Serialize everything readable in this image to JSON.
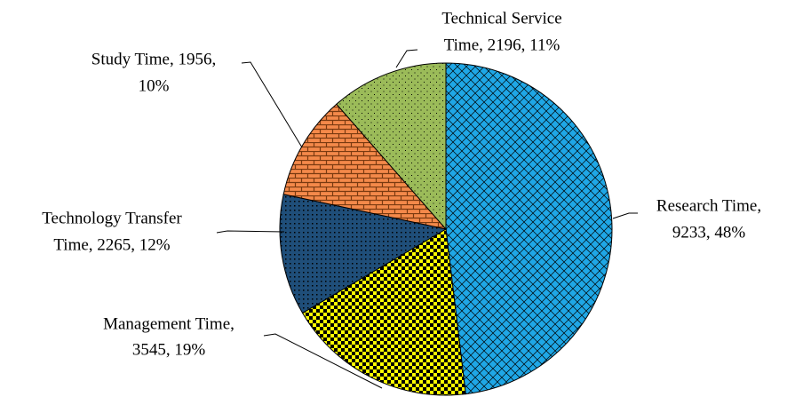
{
  "chart_data": {
    "type": "pie",
    "values": [
      9233,
      3545,
      2265,
      1956,
      2196
    ],
    "value_labels": [
      [
        "Research Time,",
        "9233, 48%"
      ],
      [
        "Management Time,",
        "3545, 19%"
      ],
      [
        "Technology Transfer",
        "Time, 2265, 12%"
      ],
      [
        "Study Time, 1956,",
        "10%"
      ],
      [
        "Technical Service",
        "Time, 2196, 11%"
      ]
    ],
    "colors": [
      "#1fa7e6",
      "#ffff00",
      "#1f4e79",
      "#f4894a",
      "#9bbb59"
    ],
    "start_angle": 0,
    "direction": "clockwise"
  }
}
